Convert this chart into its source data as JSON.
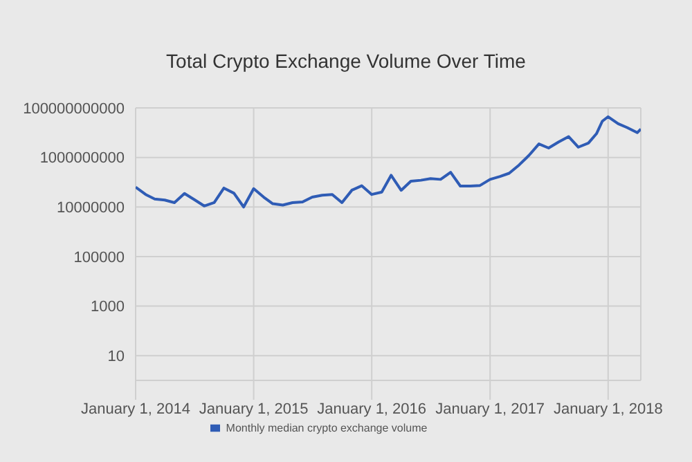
{
  "chart_data": {
    "type": "line",
    "title": "Total Crypto Exchange Volume Over Time",
    "x": [
      "2014-01-01",
      "2014-02-01",
      "2014-03-01",
      "2014-04-01",
      "2014-05-01",
      "2014-06-01",
      "2014-07-01",
      "2014-08-01",
      "2014-09-01",
      "2014-10-01",
      "2014-11-01",
      "2014-12-01",
      "2015-01-01",
      "2015-02-01",
      "2015-03-01",
      "2015-04-01",
      "2015-05-01",
      "2015-06-01",
      "2015-07-01",
      "2015-08-01",
      "2015-09-01",
      "2015-10-01",
      "2015-11-01",
      "2015-12-01",
      "2016-01-01",
      "2016-02-01",
      "2016-03-01",
      "2016-04-01",
      "2016-05-01",
      "2016-06-01",
      "2016-07-01",
      "2016-08-01",
      "2016-09-01",
      "2016-10-01",
      "2016-11-01",
      "2016-12-01",
      "2017-01-01",
      "2017-02-01",
      "2017-03-01",
      "2017-04-01",
      "2017-05-01",
      "2017-06-01",
      "2017-07-01",
      "2017-08-01",
      "2017-09-01",
      "2017-10-01",
      "2017-11-01",
      "2017-11-26",
      "2017-12-14",
      "2018-01-01",
      "2018-02-01",
      "2018-03-01",
      "2018-04-01",
      "2018-04-12"
    ],
    "series": [
      {
        "name": "Monthly median crypto exchange volume",
        "color": "#2f5cb5",
        "values": [
          63000000,
          32000000,
          21000000,
          19000000,
          15000000,
          35000000,
          20000000,
          11000000,
          15000000,
          58000000,
          36000000,
          10000000,
          55000000,
          25000000,
          13500000,
          12000000,
          15000000,
          16000000,
          25000000,
          30000000,
          32000000,
          15000000,
          48000000,
          72000000,
          32000000,
          40000000,
          190000000,
          47000000,
          110000000,
          120000000,
          140000000,
          130000000,
          250000000,
          70000000,
          70000000,
          74000000,
          130000000,
          170000000,
          230000000,
          500000000,
          1200000000,
          3500000000,
          2400000000,
          4200000000,
          6900000000,
          2600000000,
          3800000000,
          9100000000,
          29000000000,
          44000000000,
          23000000000,
          16000000000,
          10000000000,
          14000000000
        ]
      }
    ],
    "xlim": [
      "2014-01-01",
      "2018-04-12"
    ],
    "xticks": [
      {
        "value": "2014-01-01",
        "label": "January 1, 2014"
      },
      {
        "value": "2015-01-01",
        "label": "January 1, 2015"
      },
      {
        "value": "2016-01-01",
        "label": "January 1, 2016"
      },
      {
        "value": "2017-01-01",
        "label": "January 1, 2017"
      },
      {
        "value": "2018-01-01",
        "label": "January 1, 2018"
      }
    ],
    "ylim": [
      1,
      100000000000
    ],
    "yticks": [
      10,
      1000,
      100000,
      10000000,
      1000000000,
      100000000000
    ],
    "log": "y",
    "grid": true,
    "legend": "bottom",
    "marker": "none",
    "line_style": "solid"
  }
}
